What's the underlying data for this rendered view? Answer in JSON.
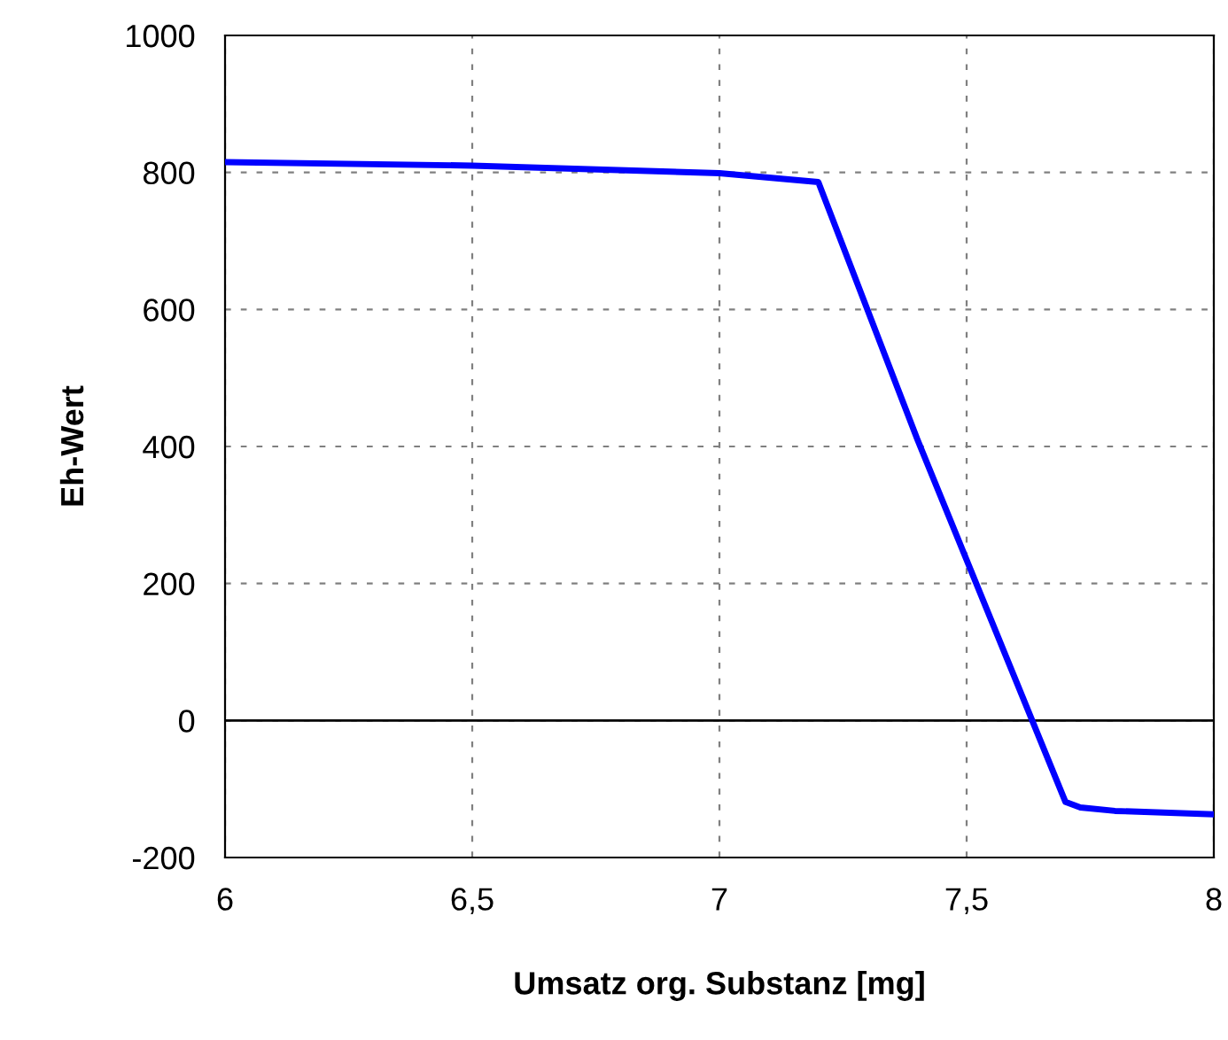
{
  "chart_data": {
    "type": "line",
    "xlabel": "Umsatz org. Substanz [mg]",
    "ylabel": "Eh-Wert",
    "series": [
      {
        "color": "#0000ff",
        "x": [
          6,
          6.5,
          7,
          7.2,
          7.4,
          7.7,
          7.73,
          7.8,
          8
        ],
        "values": [
          815,
          810,
          799,
          786,
          411,
          -119,
          -127,
          -132,
          -137
        ]
      }
    ],
    "xlim": [
      6,
      8
    ],
    "ylim": [
      -200,
      1000
    ],
    "xticks": [
      6,
      {
        "value": 6.5,
        "label": "6,5"
      },
      7,
      {
        "value": 7.5,
        "label": "7,5"
      },
      8
    ],
    "yticks": [
      -200,
      0,
      200,
      400,
      600,
      800,
      1000
    ],
    "ref_lines": [
      {
        "axis": "y",
        "value": 0,
        "color": "#000000",
        "line_style": "solid"
      }
    ],
    "grid": true,
    "marker": "none",
    "line_style": "solid"
  }
}
